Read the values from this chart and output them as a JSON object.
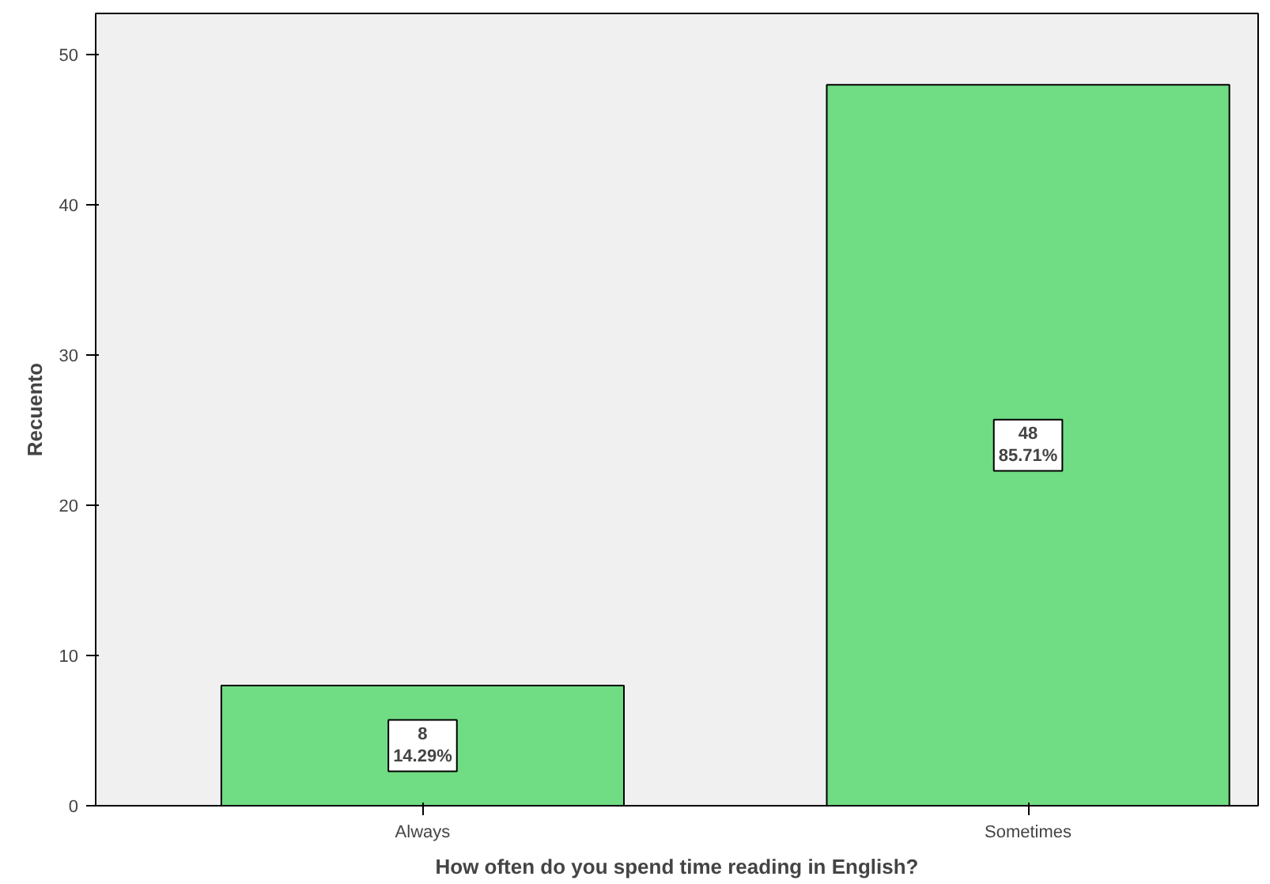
{
  "chart_data": {
    "type": "bar",
    "xlabel": "How often do you spend time reading in English?",
    "ylabel": "Recuento",
    "categories": [
      "Always",
      "Sometimes"
    ],
    "values": [
      8,
      48
    ],
    "value_labels": [
      "8\n14.29%",
      "48\n85.71%"
    ],
    "color": "#70dc84",
    "ylim": [
      0,
      52.75
    ],
    "yticks": [
      0,
      10,
      20,
      30,
      40,
      50
    ],
    "grid": false
  }
}
